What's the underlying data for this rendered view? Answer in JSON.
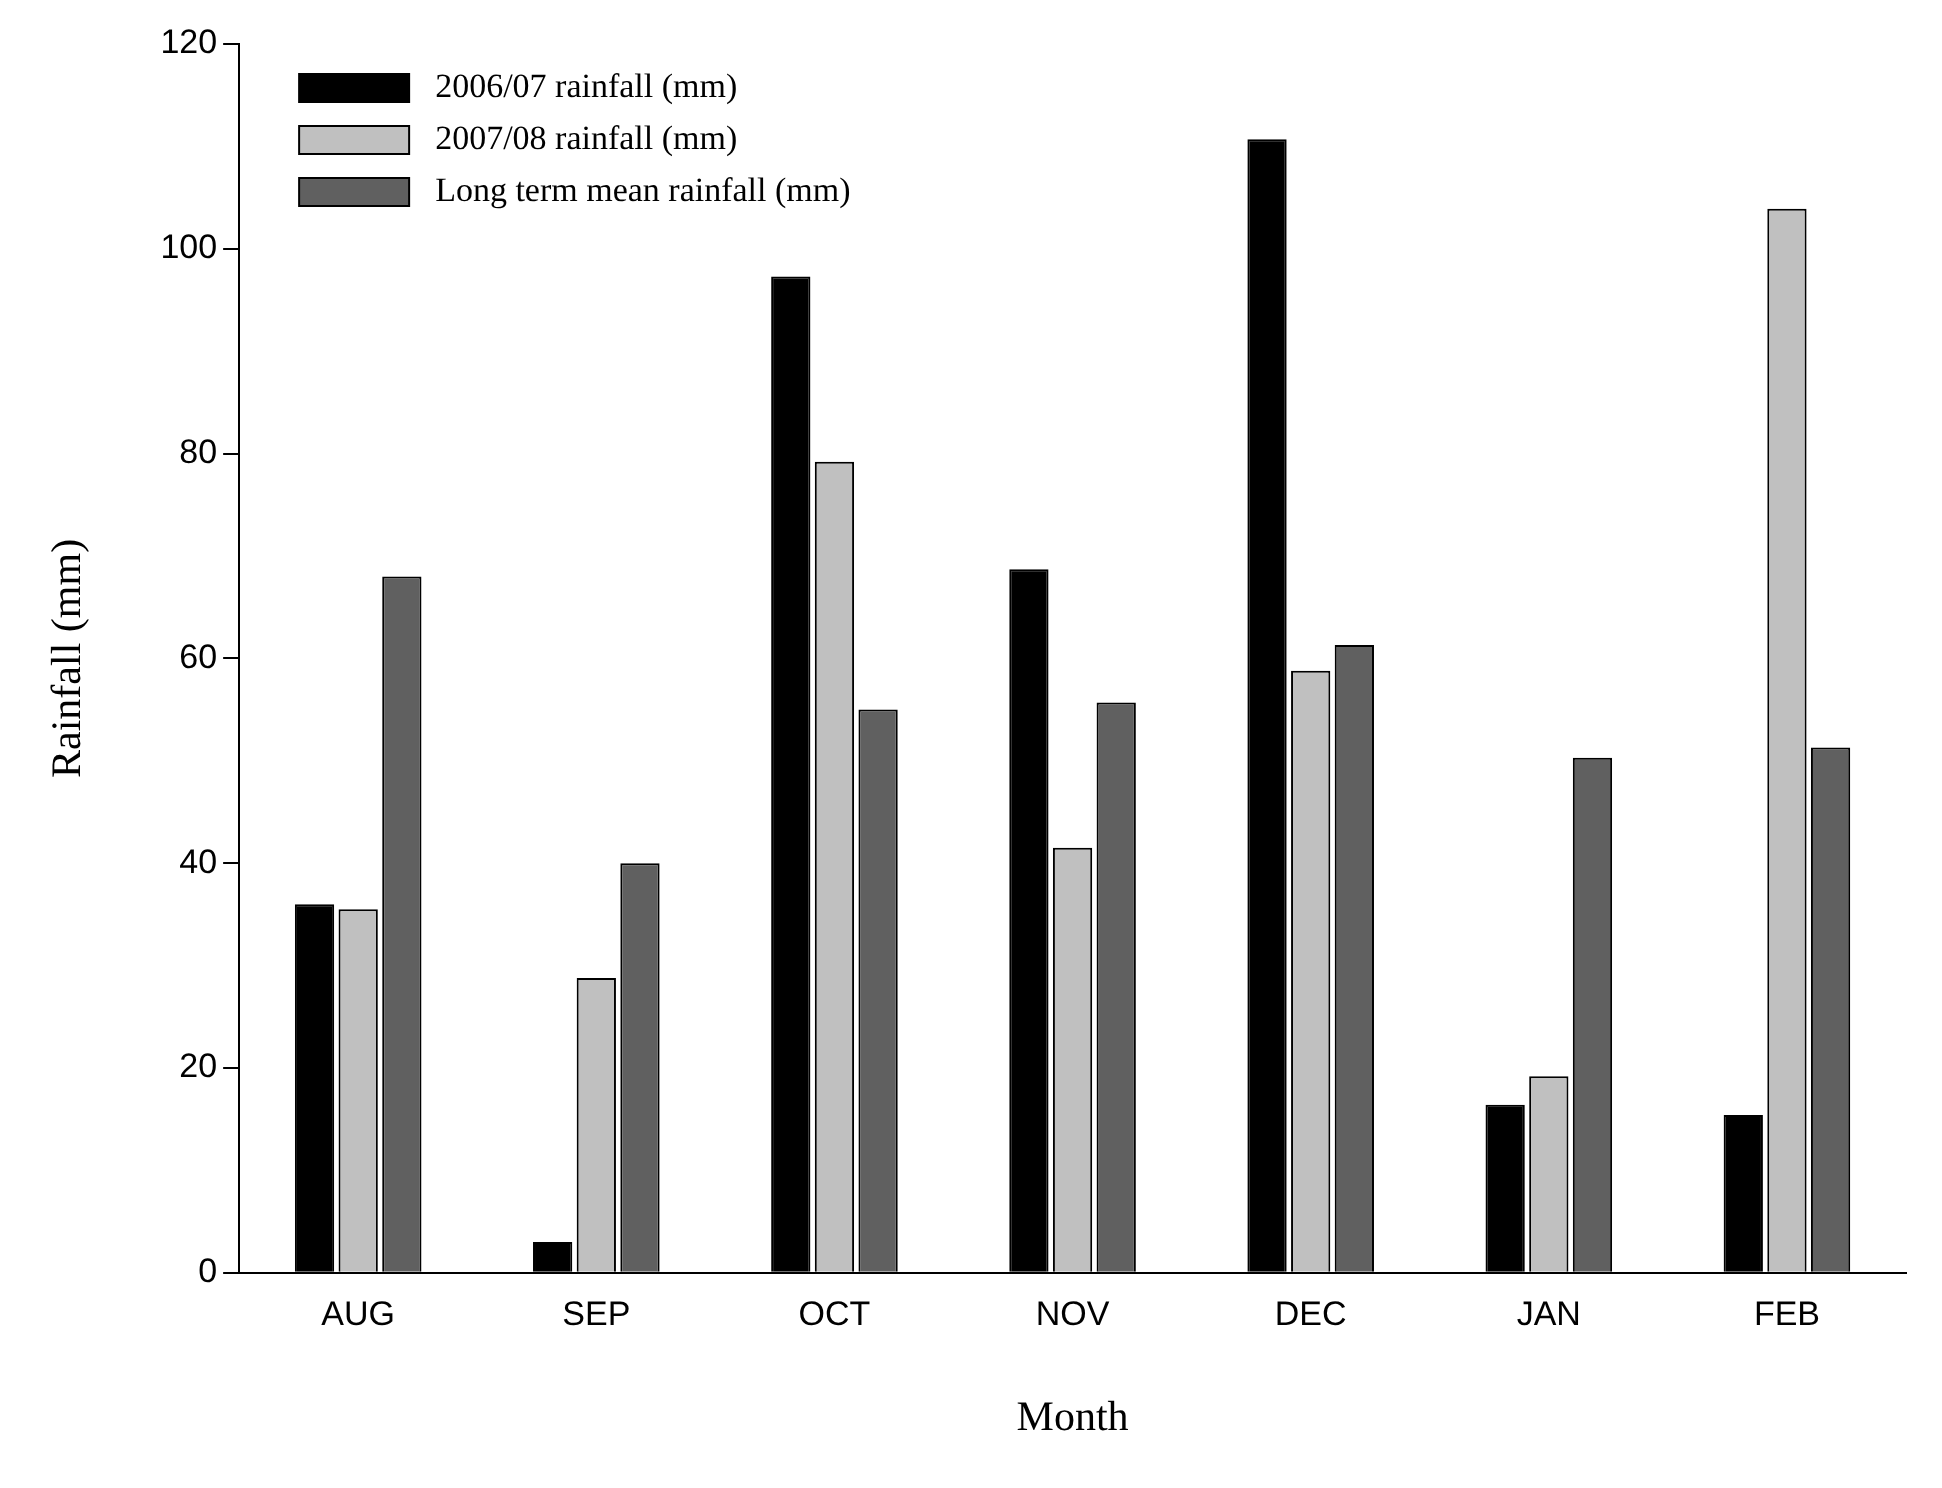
{
  "chart_data": {
    "type": "bar",
    "xlabel": "Month",
    "ylabel": "Rainfall (mm)",
    "categories": [
      "AUG",
      "SEP",
      "OCT",
      "NOV",
      "DEC",
      "JAN",
      "FEB"
    ],
    "series": [
      {
        "name": "2006/07 rainfall (mm)",
        "color": "#000000",
        "values": [
          36,
          3,
          97.3,
          68.7,
          110.7,
          16.4,
          15.4
        ]
      },
      {
        "name": "2007/08 rainfall (mm)",
        "color": "#c0c0c0",
        "values": [
          35.5,
          28.8,
          79.2,
          41.5,
          58.8,
          19.2,
          103.9
        ]
      },
      {
        "name": "Long term mean rainfall (mm)",
        "color": "#606060",
        "values": [
          68,
          40,
          55,
          55.7,
          61.3,
          50.3,
          51.3
        ]
      }
    ],
    "ylim": [
      0,
      120
    ],
    "yticks": [
      0,
      20,
      40,
      60,
      80,
      100,
      120
    ],
    "grid": false,
    "legend": "top left"
  }
}
